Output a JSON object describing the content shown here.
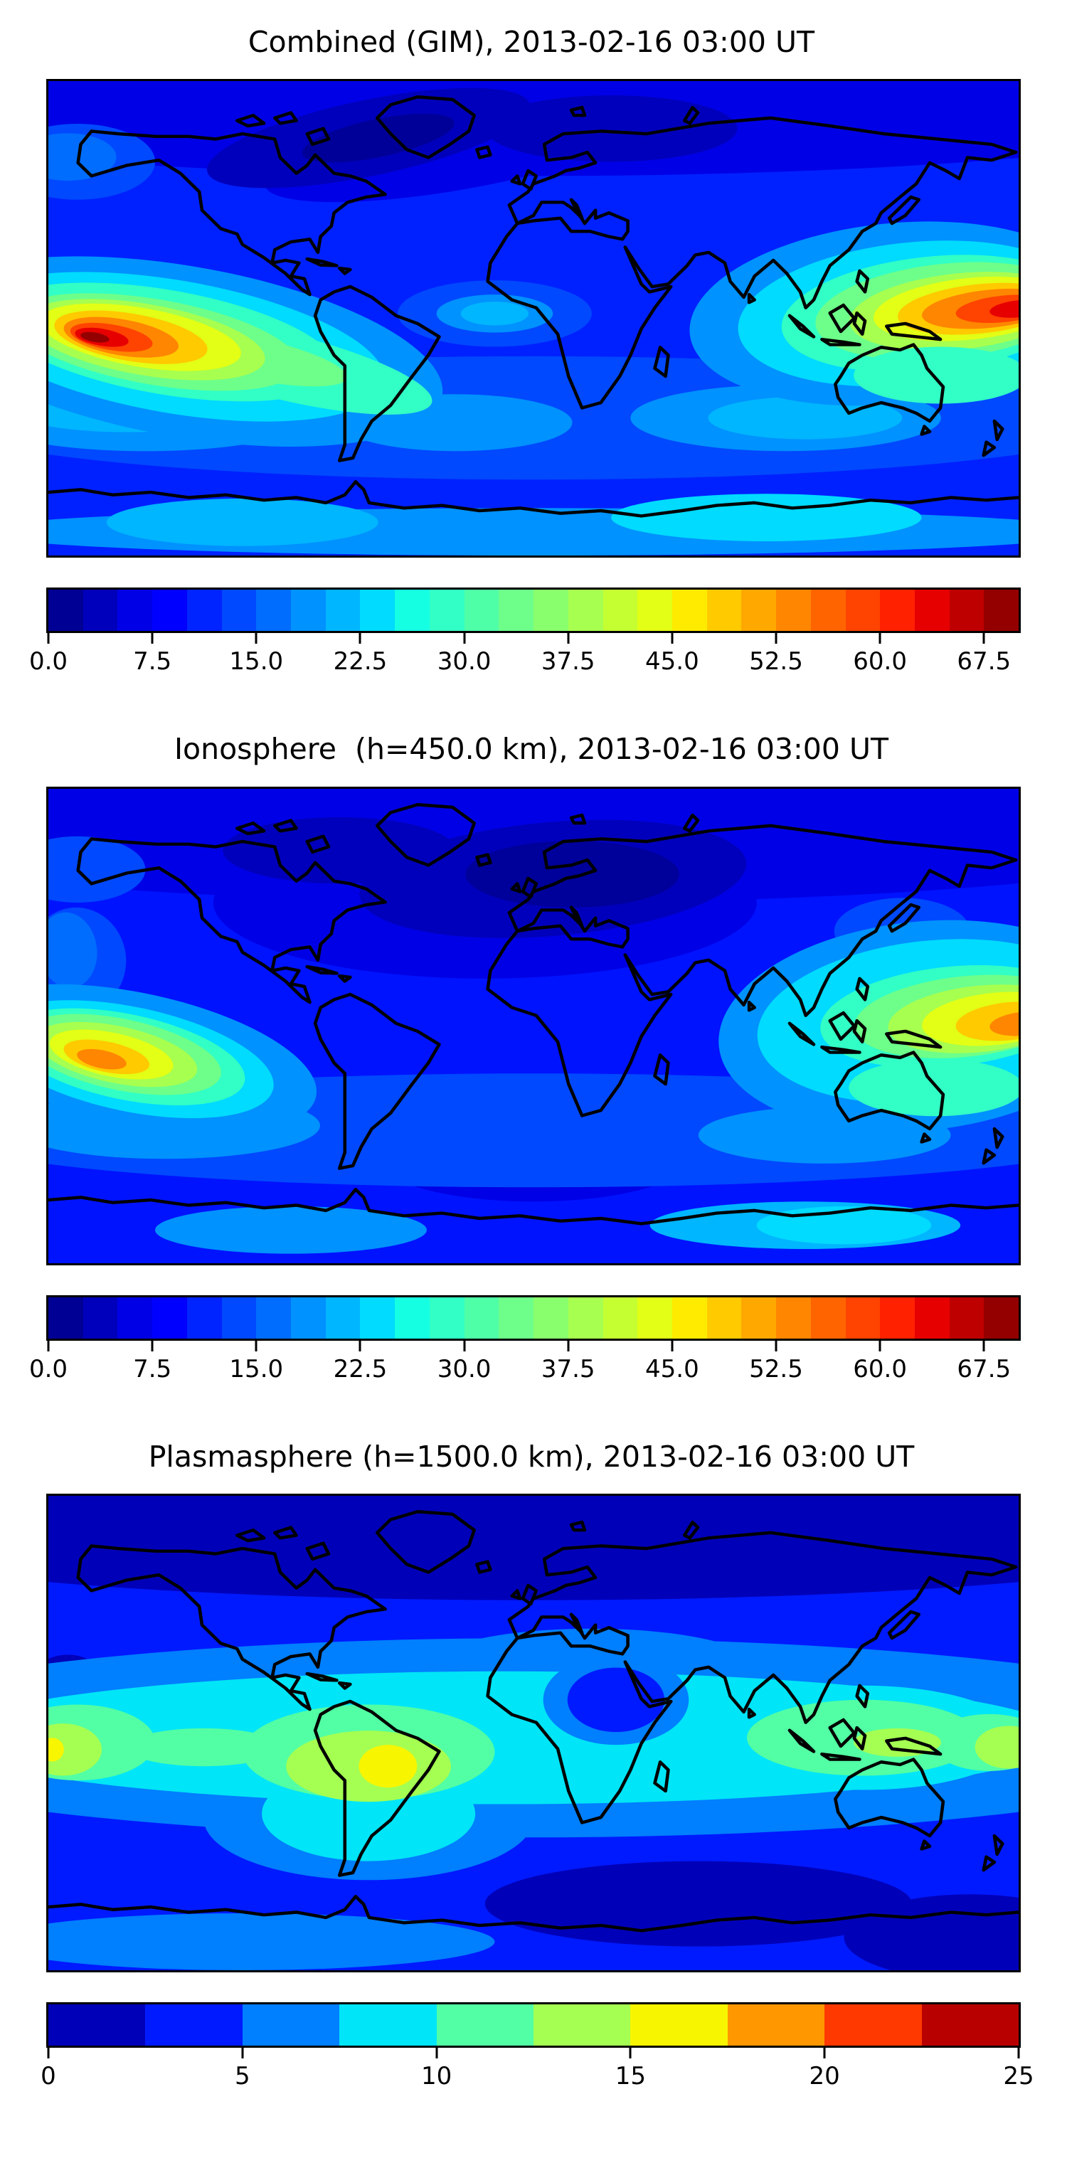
{
  "figure": {
    "background": "#ffffff",
    "text_color": "#000000",
    "coastline_color": "#000000"
  },
  "panels": [
    {
      "title": "Combined (GIM), 2013-02-16 03:00 UT",
      "colorbar": {
        "vmin": 0,
        "vmax": 70,
        "level_step": 2.5,
        "tick_values": [
          0,
          7.5,
          15,
          22.5,
          30,
          37.5,
          45,
          52.5,
          60,
          67.5
        ],
        "tick_labels": [
          "0.0",
          "7.5",
          "15.0",
          "22.5",
          "30.0",
          "37.5",
          "45.0",
          "52.5",
          "60.0",
          "67.5"
        ],
        "segment_colors": [
          "#000094",
          "#0000BC",
          "#0000E6",
          "#0000FF",
          "#0024FF",
          "#0049FF",
          "#006DFF",
          "#0092FF",
          "#00B6FF",
          "#00DBFF",
          "#15FFE2",
          "#32FFC5",
          "#4FFFA7",
          "#6DFF8A",
          "#8AFF6D",
          "#A7FF4F",
          "#C5FF32",
          "#E2FF15",
          "#FEEB00",
          "#FFCA00",
          "#FFA800",
          "#FF8600",
          "#FF6400",
          "#FF4300",
          "#FF2100",
          "#E70000",
          "#BE0000",
          "#940000"
        ]
      },
      "field": {
        "base": "#0021FF",
        "blobs": [
          [
            50,
            5,
            75,
            15,
            0,
            "#0000E6"
          ],
          [
            42,
            15,
            20,
            8,
            -10,
            "#0000E6"
          ],
          [
            33,
            12,
            17,
            8,
            -12,
            "#0000BC"
          ],
          [
            58,
            10,
            13,
            7,
            0,
            "#0000BC"
          ],
          [
            34,
            12,
            8,
            4,
            -12,
            "#000099"
          ],
          [
            3,
            17,
            8,
            8,
            0,
            "#0049FF"
          ],
          [
            2,
            16,
            5,
            5,
            0,
            "#006DFF"
          ],
          [
            50,
            71,
            62,
            13,
            0,
            "#0049FF"
          ],
          [
            10,
            70,
            18,
            8,
            0,
            "#0092FF"
          ],
          [
            76,
            71,
            16,
            7,
            0,
            "#0092FF"
          ],
          [
            42,
            72,
            12,
            6,
            0,
            "#0092FF"
          ],
          [
            8,
            69,
            12,
            5,
            0,
            "#00B6FF"
          ],
          [
            78,
            71,
            10,
            4.5,
            0,
            "#00B6FF"
          ],
          [
            50,
            95,
            58,
            5,
            0,
            "#0092FF"
          ],
          [
            20,
            93,
            14,
            5,
            0,
            "#00B6FF"
          ],
          [
            74,
            92,
            16,
            5,
            0,
            "#00DBFF"
          ],
          [
            46,
            49,
            10,
            7,
            0,
            "#0049FF"
          ],
          [
            46,
            49,
            6,
            4,
            0,
            "#0092FF"
          ],
          [
            46,
            49,
            3.5,
            2.5,
            0,
            "#00B6FF"
          ],
          [
            87,
            49,
            21,
            19,
            -6,
            "#0092FF"
          ],
          [
            89,
            49,
            18,
            15,
            -6,
            "#00DBFF"
          ],
          [
            91,
            49,
            15.5,
            12,
            -6,
            "#32FFC5"
          ],
          [
            92.5,
            48.5,
            13.5,
            10,
            -6,
            "#6DFF8A"
          ],
          [
            94,
            48.5,
            11.5,
            8,
            -6,
            "#A7FF4F"
          ],
          [
            95,
            48,
            10,
            6.5,
            -6,
            "#E2FF15"
          ],
          [
            96,
            48,
            8.5,
            5.2,
            -6,
            "#FFCA00"
          ],
          [
            97,
            48,
            7,
            4,
            -6,
            "#FF8600"
          ],
          [
            98.5,
            48,
            5,
            2.8,
            -6,
            "#FF4300"
          ],
          [
            100,
            48,
            3,
            1.8,
            -6,
            "#E70000"
          ],
          [
            92,
            62,
            9,
            6,
            0,
            "#32FFC5"
          ],
          [
            14,
            57,
            27,
            18,
            10,
            "#0092FF"
          ],
          [
            13,
            56,
            22,
            14,
            10,
            "#00DBFF"
          ],
          [
            24,
            60,
            16,
            7,
            14,
            "#32FFC5"
          ],
          [
            12,
            55,
            18,
            11,
            10,
            "#32FFC5"
          ],
          [
            20,
            58,
            11,
            4.5,
            12,
            "#6DFF8A"
          ],
          [
            11,
            55,
            15,
            9,
            10,
            "#6DFF8A"
          ],
          [
            10,
            54.5,
            12.5,
            7.5,
            10,
            "#A7FF4F"
          ],
          [
            9.5,
            54,
            10.5,
            6.2,
            10,
            "#E2FF15"
          ],
          [
            8.5,
            54,
            8,
            5,
            10,
            "#FFCA00"
          ],
          [
            7.5,
            54,
            6,
            3.8,
            10,
            "#FF8600"
          ],
          [
            6.5,
            54,
            4.3,
            2.7,
            10,
            "#FF4300"
          ],
          [
            5.5,
            54,
            2.8,
            1.8,
            10,
            "#E70000"
          ],
          [
            4.8,
            54,
            1.5,
            1,
            10,
            "#940000"
          ]
        ]
      }
    },
    {
      "title": "Ionosphere  (h=450.0 km), 2013-02-16 03:00 UT",
      "colorbar": {
        "vmin": 0,
        "vmax": 70,
        "level_step": 2.5,
        "tick_values": [
          0,
          7.5,
          15,
          22.5,
          30,
          37.5,
          45,
          52.5,
          60,
          67.5
        ],
        "tick_labels": [
          "0.0",
          "7.5",
          "15.0",
          "22.5",
          "30.0",
          "37.5",
          "45.0",
          "52.5",
          "60.0",
          "67.5"
        ],
        "segment_colors": [
          "#000094",
          "#0000BC",
          "#0000E6",
          "#0000FF",
          "#0024FF",
          "#0049FF",
          "#006DFF",
          "#0092FF",
          "#00B6FF",
          "#00DBFF",
          "#15FFE2",
          "#32FFC5",
          "#4FFFA7",
          "#6DFF8A",
          "#8AFF6D",
          "#A7FF4F",
          "#C5FF32",
          "#E2FF15",
          "#FEEB00",
          "#FFCA00",
          "#FFA800",
          "#FF8600",
          "#FF6400",
          "#FF4300",
          "#FF2100",
          "#E70000",
          "#BE0000",
          "#940000"
        ]
      },
      "field": {
        "base": "#0013FF",
        "blobs": [
          [
            50,
            8,
            75,
            16,
            0,
            "#0000E6"
          ],
          [
            45,
            24,
            28,
            16,
            0,
            "#0000E6"
          ],
          [
            52,
            19,
            20,
            12,
            -5,
            "#0000BC"
          ],
          [
            30,
            13,
            12,
            7,
            0,
            "#0000BC"
          ],
          [
            54,
            18,
            11,
            7,
            0,
            "#00009A"
          ],
          [
            50,
            78,
            16,
            9,
            0,
            "#0000E6"
          ],
          [
            49,
            77,
            9,
            5,
            0,
            "#0000BC"
          ],
          [
            3,
            17,
            7,
            7,
            0,
            "#0049FF"
          ],
          [
            3,
            36,
            5,
            11,
            -8,
            "#0049FF"
          ],
          [
            2,
            34,
            3,
            8,
            -8,
            "#006DFF"
          ],
          [
            88,
            30,
            7,
            7,
            0,
            "#0049FF"
          ],
          [
            50,
            72,
            62,
            12,
            0,
            "#0049FF"
          ],
          [
            12,
            71,
            16,
            7,
            0,
            "#0092FF"
          ],
          [
            80,
            73,
            13,
            6,
            0,
            "#0092FF"
          ],
          [
            25,
            93,
            14,
            5,
            0,
            "#0092FF"
          ],
          [
            78,
            92,
            16,
            5,
            0,
            "#00B6FF"
          ],
          [
            82,
            92,
            9,
            4,
            0,
            "#00DBFF"
          ],
          [
            90,
            50,
            21,
            22,
            -6,
            "#0092FF"
          ],
          [
            91,
            49,
            18,
            17,
            -6,
            "#00DBFF"
          ],
          [
            93,
            48,
            13.5,
            10.5,
            -6,
            "#32FFC5"
          ],
          [
            91.5,
            63,
            9,
            6,
            0,
            "#32FFC5"
          ],
          [
            94.5,
            48,
            11.5,
            8.5,
            -6,
            "#6DFF8A"
          ],
          [
            96,
            48.5,
            9.5,
            7,
            -6,
            "#A7FF4F"
          ],
          [
            97.5,
            48.5,
            7.5,
            5.5,
            -6,
            "#E2FF15"
          ],
          [
            99,
            49,
            5.5,
            4,
            -6,
            "#FFCA00"
          ],
          [
            100.5,
            49.5,
            3.5,
            2.5,
            -6,
            "#FF8600"
          ],
          [
            9,
            57,
            19,
            14,
            12,
            "#0092FF"
          ],
          [
            8.5,
            57,
            15,
            11,
            12,
            "#00DBFF"
          ],
          [
            8,
            56.5,
            12.5,
            9,
            12,
            "#32FFC5"
          ],
          [
            7.5,
            56,
            10.5,
            7.5,
            12,
            "#6DFF8A"
          ],
          [
            7,
            56,
            8.5,
            6,
            12,
            "#A7FF4F"
          ],
          [
            6.5,
            56,
            6.5,
            4.6,
            12,
            "#E2FF15"
          ],
          [
            6,
            56.5,
            4.5,
            3.2,
            12,
            "#FFCA00"
          ],
          [
            5.5,
            57,
            2.6,
            1.9,
            12,
            "#FF8600"
          ]
        ]
      }
    },
    {
      "title": "Plasmasphere (h=1500.0 km), 2013-02-16 03:00 UT",
      "colorbar": {
        "vmin": 0,
        "vmax": 25,
        "level_step": 2.5,
        "tick_values": [
          0,
          5,
          10,
          15,
          20,
          25
        ],
        "tick_labels": [
          "0",
          "5",
          "10",
          "15",
          "20",
          "25"
        ],
        "segment_colors": [
          "#0000B9",
          "#001AFF",
          "#007FFF",
          "#00E5F7",
          "#52FFA4",
          "#A4FF52",
          "#F7F500",
          "#FF9700",
          "#FF3900",
          "#B90000"
        ]
      },
      "field": {
        "base": "#001AFF",
        "blobs": [
          [
            50,
            7,
            75,
            15,
            0,
            "#0000B9"
          ],
          [
            72,
            11,
            33,
            10,
            0,
            "#0000B9"
          ],
          [
            67,
            86,
            22,
            9,
            0,
            "#0000B9"
          ],
          [
            95,
            93,
            13,
            9,
            0,
            "#0000B9"
          ],
          [
            2,
            37,
            3,
            3.5,
            0,
            "#0000B9"
          ],
          [
            50,
            51,
            75,
            21,
            0,
            "#007FFF"
          ],
          [
            33,
            68,
            17,
            13,
            0,
            "#007FFF"
          ],
          [
            56,
            36,
            17,
            8,
            0,
            "#007FFF"
          ],
          [
            20,
            94,
            26,
            6,
            0,
            "#007FFF"
          ],
          [
            47,
            51,
            58,
            14,
            0,
            "#00E5F7"
          ],
          [
            33,
            67,
            11,
            10,
            0,
            "#00E5F7"
          ],
          [
            84,
            51,
            16,
            11,
            0,
            "#00E5F7"
          ],
          [
            58.5,
            43,
            7.5,
            9.5,
            0,
            "#007FFF"
          ],
          [
            58.5,
            43,
            5,
            6.8,
            0,
            "#001AFF"
          ],
          [
            33,
            54,
            13,
            10,
            0,
            "#52FFA4"
          ],
          [
            3,
            52,
            8,
            8,
            0,
            "#52FFA4"
          ],
          [
            16,
            53,
            8,
            4,
            0,
            "#52FFA4"
          ],
          [
            84,
            51,
            12,
            8,
            0,
            "#52FFA4"
          ],
          [
            97,
            52,
            6,
            6,
            0,
            "#52FFA4"
          ],
          [
            33,
            57,
            8.5,
            7.5,
            0,
            "#A4FF52"
          ],
          [
            1.5,
            53.5,
            4,
            5.5,
            0,
            "#A4FF52"
          ],
          [
            99,
            53,
            3.5,
            4.5,
            0,
            "#A4FF52"
          ],
          [
            87.5,
            52,
            4.5,
            3,
            0,
            "#A4FF52"
          ],
          [
            35,
            57,
            3,
            4.5,
            0,
            "#F7F500"
          ],
          [
            0.4,
            53.5,
            1.2,
            2.5,
            0,
            "#F7F500"
          ]
        ]
      }
    }
  ],
  "chart_data": [
    {
      "type": "heatmap",
      "title": "Combined (GIM), 2013-02-16 03:00 UT",
      "projection": "equirectangular world map, lon -180..180, lat -90..90, coastlines drawn in black",
      "colormap": "jet, discrete filled contours",
      "colorbar_range": [
        0,
        70
      ],
      "colorbar_ticks": [
        0.0,
        7.5,
        15.0,
        22.5,
        30.0,
        37.5,
        45.0,
        52.5,
        60.0,
        67.5
      ],
      "features": [
        {
          "name": "pacific-peak",
          "lon": -143,
          "lat": -6,
          "approx_value": 70
        },
        {
          "name": "west-pacific-peak",
          "lon": 160,
          "lat": 3,
          "approx_value": 65
        },
        {
          "name": "polar-minimum",
          "lon": -70,
          "lat": 68,
          "approx_value": 3
        },
        {
          "name": "equatorial-band",
          "lat_range": [
            -20,
            10
          ],
          "approx_value_range": [
            20,
            70
          ]
        }
      ]
    },
    {
      "type": "heatmap",
      "title": "Ionosphere  (h=450.0 km), 2013-02-16 03:00 UT",
      "projection": "equirectangular world map, lon -180..180, lat -90..90, coastlines drawn in black",
      "colormap": "jet, discrete filled contours",
      "colorbar_range": [
        0,
        70
      ],
      "colorbar_ticks": [
        0.0,
        7.5,
        15.0,
        22.5,
        30.0,
        37.5,
        45.0,
        52.5,
        60.0,
        67.5
      ],
      "features": [
        {
          "name": "pacific-peak",
          "lon": -152,
          "lat": -11,
          "approx_value": 55
        },
        {
          "name": "west-pacific-peak",
          "lon": 175,
          "lat": 1,
          "approx_value": 53
        },
        {
          "name": "europe-africa-minimum",
          "lon": 15,
          "lat": 30,
          "approx_value": 4
        }
      ]
    },
    {
      "type": "heatmap",
      "title": "Plasmasphere (h=1500.0 km), 2013-02-16 03:00 UT",
      "projection": "equirectangular world map, lon -180..180, lat -90..90, coastlines drawn in black",
      "colormap": "jet, discrete filled contours",
      "colorbar_range": [
        0,
        25
      ],
      "colorbar_ticks": [
        0,
        5,
        10,
        15,
        20,
        25
      ],
      "features": [
        {
          "name": "south-america-peak",
          "lon": -54,
          "lat": -13,
          "approx_value": 16
        },
        {
          "name": "dateline-peak",
          "lon": -179,
          "lat": -6,
          "approx_value": 16
        },
        {
          "name": "polar-minimum-band",
          "lat_range": [
            60,
            90
          ],
          "approx_value": 2
        },
        {
          "name": "northeast-africa-depression",
          "lon": 30,
          "lat": 13,
          "approx_value": 4
        }
      ]
    }
  ]
}
